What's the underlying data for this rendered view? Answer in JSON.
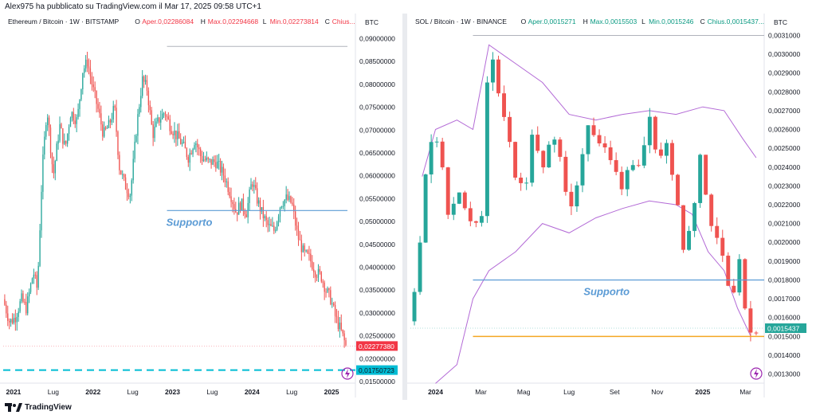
{
  "header": {
    "publisher": "Alex975 ha pubblicato su TradingView.com il Mar 17, 2025 09:58 UTC+1"
  },
  "footer": {
    "brand": "TradingView"
  },
  "chart_data": [
    {
      "type": "candlestick",
      "title": "Ethereum / Bitcoin · 1W · BITSTAMP",
      "ohlc_legend": {
        "open_label": "O",
        "open": "Aper.0,02286084",
        "high_label": "H",
        "high": "Max.0,02294668",
        "low_label": "L",
        "low": "Min.0,02273814",
        "close_label": "C",
        "close": "Chius..."
      },
      "currency": "BTC",
      "ylim": [
        0.015,
        0.092
      ],
      "y_ticks": [
        "0,09000000",
        "0,08500000",
        "0,08000000",
        "0,07500000",
        "0,07000000",
        "0,06500000",
        "0,06000000",
        "0,05500000",
        "0,05000000",
        "0,04500000",
        "0,04000000",
        "0,03500000",
        "0,03000000",
        "0,02500000",
        "0,02000000",
        "0,01500000"
      ],
      "y_tick_values": [
        0.09,
        0.085,
        0.08,
        0.075,
        0.07,
        0.065,
        0.06,
        0.055,
        0.05,
        0.045,
        0.04,
        0.035,
        0.03,
        0.025,
        0.02,
        0.015
      ],
      "x_ticks": [
        {
          "label": "2021",
          "x": 2021.0
        },
        {
          "label": "Lug",
          "x": 2021.5
        },
        {
          "label": "2022",
          "x": 2022.0
        },
        {
          "label": "Lug",
          "x": 2022.5
        },
        {
          "label": "2023",
          "x": 2023.0
        },
        {
          "label": "Lug",
          "x": 2023.5
        },
        {
          "label": "2024",
          "x": 2024.0
        },
        {
          "label": "Lug",
          "x": 2024.5
        },
        {
          "label": "2025",
          "x": 2025.0
        }
      ],
      "xlim": [
        2020.87,
        2025.3
      ],
      "last_price": {
        "label": "0,02277380",
        "value": 0.0227738,
        "color": "#f23645"
      },
      "target_price": {
        "label": "0,01750723",
        "value": 0.01750723,
        "color": "#00bcd4"
      },
      "support": {
        "label": "Supporto",
        "value": 0.0524,
        "x_from": 2022.93,
        "x_to": 2025.2,
        "color": "#5b9bd5"
      },
      "top_line": {
        "value": 0.0883,
        "x_from": 2022.93,
        "x_to": 2025.2
      },
      "path": [
        [
          2020.87,
          0.033
        ],
        [
          2020.95,
          0.028
        ],
        [
          2021.02,
          0.029
        ],
        [
          2021.1,
          0.033
        ],
        [
          2021.16,
          0.031
        ],
        [
          2021.25,
          0.039
        ],
        [
          2021.3,
          0.035
        ],
        [
          2021.36,
          0.061
        ],
        [
          2021.42,
          0.075
        ],
        [
          2021.5,
          0.06
        ],
        [
          2021.58,
          0.071
        ],
        [
          2021.65,
          0.066
        ],
        [
          2021.72,
          0.074
        ],
        [
          2021.8,
          0.072
        ],
        [
          2021.87,
          0.083
        ],
        [
          2021.93,
          0.085
        ],
        [
          2022.0,
          0.079
        ],
        [
          2022.07,
          0.074
        ],
        [
          2022.13,
          0.069
        ],
        [
          2022.2,
          0.071
        ],
        [
          2022.27,
          0.075
        ],
        [
          2022.33,
          0.062
        ],
        [
          2022.4,
          0.058
        ],
        [
          2022.47,
          0.056
        ],
        [
          2022.55,
          0.071
        ],
        [
          2022.62,
          0.081
        ],
        [
          2022.68,
          0.079
        ],
        [
          2022.75,
          0.069
        ],
        [
          2022.82,
          0.072
        ],
        [
          2022.9,
          0.074
        ],
        [
          2022.97,
          0.071
        ],
        [
          2023.04,
          0.069
        ],
        [
          2023.12,
          0.067
        ],
        [
          2023.2,
          0.064
        ],
        [
          2023.28,
          0.068
        ],
        [
          2023.36,
          0.064
        ],
        [
          2023.45,
          0.063
        ],
        [
          2023.55,
          0.063
        ],
        [
          2023.65,
          0.06
        ],
        [
          2023.73,
          0.056
        ],
        [
          2023.8,
          0.052
        ],
        [
          2023.86,
          0.054
        ],
        [
          2023.93,
          0.052
        ],
        [
          2024.0,
          0.059
        ],
        [
          2024.06,
          0.055
        ],
        [
          2024.12,
          0.052
        ],
        [
          2024.2,
          0.049
        ],
        [
          2024.28,
          0.048
        ],
        [
          2024.36,
          0.054
        ],
        [
          2024.43,
          0.055
        ],
        [
          2024.5,
          0.054
        ],
        [
          2024.57,
          0.047
        ],
        [
          2024.65,
          0.043
        ],
        [
          2024.72,
          0.042
        ],
        [
          2024.8,
          0.039
        ],
        [
          2024.87,
          0.038
        ],
        [
          2024.93,
          0.035
        ],
        [
          2024.99,
          0.033
        ],
        [
          2025.05,
          0.029
        ],
        [
          2025.12,
          0.026
        ],
        [
          2025.18,
          0.0228
        ]
      ]
    },
    {
      "type": "candlestick",
      "title": "SOL / Bitcoin · 1W · BINANCE",
      "ohlc_legend": {
        "open_label": "O",
        "open": "Aper.0,0015271",
        "high_label": "H",
        "high": "Max.0,0015503",
        "low_label": "L",
        "low": "Min.0,0015246",
        "close_label": "C",
        "close": "Chius.0,0015437..."
      },
      "currency": "BTC",
      "ylim": [
        0.00126,
        0.00314
      ],
      "y_ticks": [
        "0,0031000",
        "0,0030000",
        "0,0029000",
        "0,0028000",
        "0,0027000",
        "0,0026000",
        "0,0025000",
        "0,0024000",
        "0,0023000",
        "0,0022000",
        "0,0021000",
        "0,0020000",
        "0,0019000",
        "0,0018000",
        "0,0017000",
        "0,0016000",
        "0,0015000",
        "0,0014000",
        "0,0013000"
      ],
      "y_tick_values": [
        0.0031,
        0.003,
        0.0029,
        0.0028,
        0.0027,
        0.0026,
        0.0025,
        0.0024,
        0.0023,
        0.0022,
        0.0021,
        0.002,
        0.0019,
        0.0018,
        0.0017,
        0.0016,
        0.0015,
        0.0014,
        0.0013
      ],
      "x_ticks": [
        {
          "label": "2024",
          "x": 2024.0
        },
        {
          "label": "Mar",
          "x": 2024.17
        },
        {
          "label": "Mag",
          "x": 2024.33
        },
        {
          "label": "Lug",
          "x": 2024.5
        },
        {
          "label": "Set",
          "x": 2024.67
        },
        {
          "label": "Nov",
          "x": 2024.83
        },
        {
          "label": "2025",
          "x": 2025.0
        },
        {
          "label": "Mar",
          "x": 2025.16
        }
      ],
      "xlim": [
        2023.9,
        2025.23
      ],
      "last_price": {
        "label": "0,0015437",
        "value": 0.0015437,
        "color": "#26a69a"
      },
      "support": {
        "label": "Supporto",
        "value": 0.0018,
        "x_from": 2024.14,
        "x_to": 2025.23,
        "color": "#5b9bd5"
      },
      "orange_line": {
        "value": 0.0015,
        "x_from": 2024.14,
        "x_to": 2025.23,
        "color": "#f5a623"
      },
      "top_line": {
        "value": 0.0031,
        "x_from": 2024.14,
        "x_to": 2025.23
      },
      "path": [
        [
          2023.9,
          0.00158
        ],
        [
          2023.93,
          0.00185
        ],
        [
          2023.96,
          0.0023
        ],
        [
          2023.99,
          0.00262
        ],
        [
          2024.02,
          0.0025
        ],
        [
          2024.05,
          0.00208
        ],
        [
          2024.08,
          0.0023
        ],
        [
          2024.11,
          0.0022
        ],
        [
          2024.14,
          0.0021
        ],
        [
          2024.17,
          0.00205
        ],
        [
          2024.2,
          0.00305
        ],
        [
          2024.23,
          0.00285
        ],
        [
          2024.27,
          0.0026
        ],
        [
          2024.3,
          0.00235
        ],
        [
          2024.33,
          0.00225
        ],
        [
          2024.37,
          0.00262
        ],
        [
          2024.4,
          0.00235
        ],
        [
          2024.44,
          0.0026
        ],
        [
          2024.47,
          0.00245
        ],
        [
          2024.5,
          0.0021
        ],
        [
          2024.53,
          0.00232
        ],
        [
          2024.57,
          0.00265
        ],
        [
          2024.6,
          0.00255
        ],
        [
          2024.63,
          0.0025
        ],
        [
          2024.67,
          0.00238
        ],
        [
          2024.7,
          0.0023
        ],
        [
          2024.73,
          0.00245
        ],
        [
          2024.77,
          0.0024
        ],
        [
          2024.8,
          0.00265
        ],
        [
          2024.83,
          0.0024
        ],
        [
          2024.86,
          0.00255
        ],
        [
          2024.9,
          0.0023
        ],
        [
          2024.93,
          0.00195
        ],
        [
          2024.96,
          0.0021
        ],
        [
          2024.99,
          0.0025
        ],
        [
          2025.02,
          0.00215
        ],
        [
          2025.05,
          0.00205
        ],
        [
          2025.08,
          0.0019
        ],
        [
          2025.11,
          0.0017
        ],
        [
          2025.14,
          0.0019
        ],
        [
          2025.17,
          0.00152
        ],
        [
          2025.2,
          0.00154
        ]
      ],
      "bollinger_upper": [
        [
          2023.95,
          0.00235
        ],
        [
          2024.0,
          0.0026
        ],
        [
          2024.08,
          0.00265
        ],
        [
          2024.14,
          0.0026
        ],
        [
          2024.2,
          0.00305
        ],
        [
          2024.3,
          0.00295
        ],
        [
          2024.4,
          0.00285
        ],
        [
          2024.5,
          0.00268
        ],
        [
          2024.6,
          0.00265
        ],
        [
          2024.7,
          0.00268
        ],
        [
          2024.8,
          0.0027
        ],
        [
          2024.9,
          0.00268
        ],
        [
          2025.0,
          0.00272
        ],
        [
          2025.08,
          0.0027
        ],
        [
          2025.15,
          0.00255
        ],
        [
          2025.2,
          0.00245
        ]
      ],
      "bollinger_lower": [
        [
          2024.0,
          0.00125
        ],
        [
          2024.08,
          0.00135
        ],
        [
          2024.14,
          0.0017
        ],
        [
          2024.2,
          0.00185
        ],
        [
          2024.3,
          0.00195
        ],
        [
          2024.4,
          0.0021
        ],
        [
          2024.5,
          0.00205
        ],
        [
          2024.6,
          0.00213
        ],
        [
          2024.7,
          0.00218
        ],
        [
          2024.8,
          0.00222
        ],
        [
          2024.9,
          0.0022
        ],
        [
          2024.96,
          0.00215
        ],
        [
          2025.02,
          0.00195
        ],
        [
          2025.08,
          0.00185
        ],
        [
          2025.13,
          0.00165
        ],
        [
          2025.18,
          0.0015
        ]
      ],
      "bollinger_color": "#b36ad6"
    }
  ]
}
